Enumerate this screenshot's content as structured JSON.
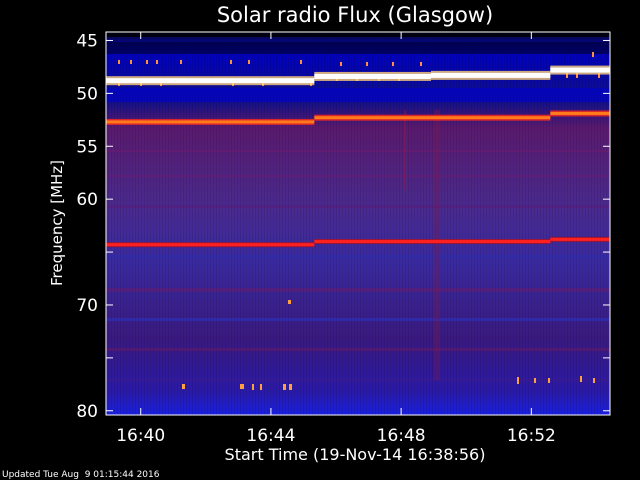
{
  "chart_data": {
    "type": "heatmap",
    "title": "Solar radio Flux (Glasgow)",
    "xlabel": "Start Time (19-Nov-14 16:38:56)",
    "ylabel": "Frequency [MHz]",
    "x_unit": "minutes",
    "x_range": [
      "16:38:56",
      "16:54:25"
    ],
    "x_ticks": [
      "16:40",
      "16:44",
      "16:48",
      "16:52"
    ],
    "y_ticks": [
      45,
      50,
      55,
      60,
      65,
      70,
      75,
      80
    ],
    "y_tick_labels": [
      "45",
      "50",
      "55",
      "60",
      "",
      "70",
      "",
      "80"
    ],
    "ylim": [
      80,
      45
    ],
    "colormap": [
      "#000000",
      "#0000ff",
      "#800080",
      "#ff0000",
      "#ffa500",
      "#ffffff"
    ],
    "segments": [
      {
        "x_start": "16:38:56",
        "x_end": "16:45:20"
      },
      {
        "x_start": "16:45:20",
        "x_end": "16:48:55"
      },
      {
        "x_start": "16:48:55",
        "x_end": "16:52:35"
      },
      {
        "x_start": "16:52:35",
        "x_end": "16:54:25"
      }
    ],
    "bands": [
      {
        "name": "white",
        "freq_mhz": [
          48.8,
          48.4,
          48.3,
          47.8
        ]
      },
      {
        "name": "orange",
        "freq_mhz": [
          52.7,
          52.3,
          52.3,
          51.9
        ]
      },
      {
        "name": "red",
        "freq_mhz": [
          64.3,
          64.0,
          64.0,
          63.8
        ]
      }
    ]
  },
  "footer": {
    "updated": "Updated Tue Aug  9 01:15:44 2016"
  }
}
